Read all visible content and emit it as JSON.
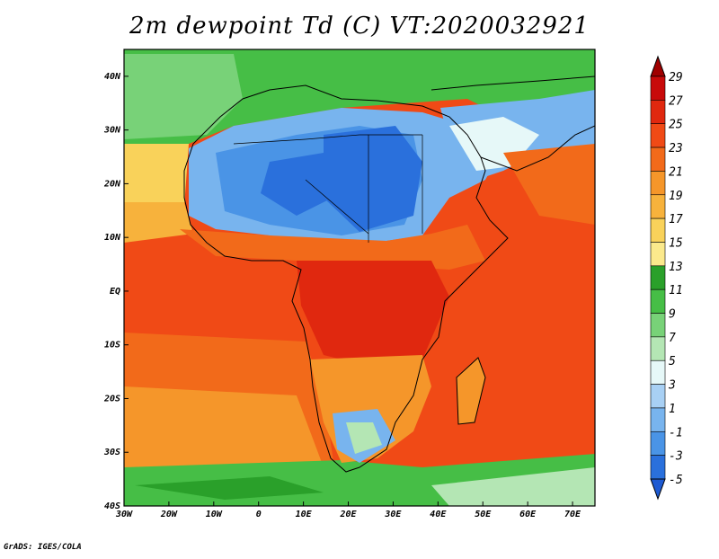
{
  "title": "2m dewpoint Td (C) VT:2020032921",
  "credit": "GrADS: IGES/COLA",
  "map": {
    "lon_range": [
      -30,
      75
    ],
    "lat_range": [
      -40,
      45
    ],
    "x_ticks": [
      "30W",
      "20W",
      "10W",
      "0",
      "10E",
      "20E",
      "30E",
      "40E",
      "50E",
      "60E",
      "70E"
    ],
    "y_ticks": [
      "40N",
      "30N",
      "20N",
      "10N",
      "EQ",
      "10S",
      "20S",
      "30S",
      "40S"
    ]
  },
  "colorbar": {
    "labels": [
      "29",
      "27",
      "25",
      "23",
      "21",
      "19",
      "17",
      "15",
      "13",
      "11",
      "9",
      "7",
      "5",
      "3",
      "1",
      "-1",
      "-3",
      "-5"
    ],
    "colors": [
      "#a00000",
      "#c80a0a",
      "#e0280f",
      "#f04a16",
      "#f26a1a",
      "#f5962a",
      "#f7b23c",
      "#f9d25a",
      "#fbe98c",
      "#2aa02a",
      "#46be46",
      "#78d278",
      "#b4e6b4",
      "#e6f8f8",
      "#a8d0f4",
      "#78b4ee",
      "#4a94e6",
      "#2a70dc",
      "#1e5ad2"
    ]
  }
}
